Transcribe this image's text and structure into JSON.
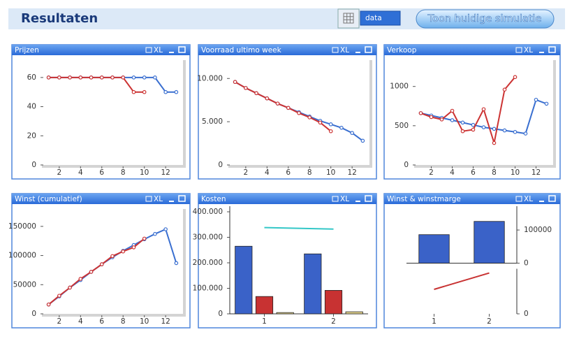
{
  "header": {
    "title": "Resultaten",
    "data_button": "data",
    "action_button": "Toon huidige simulatie"
  },
  "window_label": "XL",
  "chart_data": [
    {
      "type": "line",
      "title": "Prijzen",
      "x": [
        1,
        2,
        3,
        4,
        5,
        6,
        7,
        8,
        9,
        10,
        11,
        12,
        13
      ],
      "xlim": [
        0.5,
        13.5
      ],
      "xticks": [
        2,
        4,
        6,
        8,
        10,
        12
      ],
      "ylim": [
        0,
        70
      ],
      "yticks": [
        0,
        20,
        40,
        60
      ],
      "series": [
        {
          "color": "#3a6fd0",
          "values": [
            60,
            60,
            60,
            60,
            60,
            60,
            60,
            60,
            60,
            60,
            60,
            50,
            50
          ]
        },
        {
          "color": "#cc3333",
          "values": [
            60,
            60,
            60,
            60,
            60,
            60,
            60,
            60,
            50,
            50,
            null,
            null,
            null
          ]
        }
      ]
    },
    {
      "type": "line",
      "title": "Voorraad ultimo week",
      "x": [
        1,
        2,
        3,
        4,
        5,
        6,
        7,
        8,
        9,
        10,
        11,
        12,
        13
      ],
      "xlim": [
        0.5,
        13.5
      ],
      "xticks": [
        2,
        4,
        6,
        8,
        10,
        12
      ],
      "ylim": [
        0,
        11800
      ],
      "yticks": [
        0,
        {
          "value": 5000,
          "label": "5.000"
        },
        {
          "value": 10000,
          "label": "10.000"
        }
      ],
      "series": [
        {
          "color": "#3a6fd0",
          "values": [
            9600,
            8900,
            8300,
            7700,
            7100,
            6600,
            6100,
            5600,
            5100,
            4700,
            4300,
            3700,
            2800
          ]
        },
        {
          "color": "#cc3333",
          "values": [
            9600,
            8900,
            8300,
            7700,
            7100,
            6600,
            6000,
            5500,
            4900,
            3900,
            null,
            null,
            null
          ]
        }
      ]
    },
    {
      "type": "line",
      "title": "Verkoop",
      "x": [
        1,
        2,
        3,
        4,
        5,
        6,
        7,
        8,
        9,
        10,
        11,
        12,
        13
      ],
      "xlim": [
        0.5,
        13.5
      ],
      "xticks": [
        2,
        4,
        6,
        8,
        10,
        12
      ],
      "ylim": [
        0,
        1300
      ],
      "yticks": [
        0,
        500,
        1000
      ],
      "series": [
        {
          "color": "#3a6fd0",
          "values": [
            660,
            630,
            600,
            570,
            540,
            510,
            480,
            460,
            440,
            420,
            400,
            830,
            780
          ]
        },
        {
          "color": "#cc3333",
          "values": [
            660,
            610,
            580,
            690,
            430,
            450,
            710,
            280,
            960,
            1120,
            null,
            null,
            null
          ]
        }
      ]
    },
    {
      "type": "line",
      "title": "Winst (cumulatief)",
      "x": [
        1,
        2,
        3,
        4,
        5,
        6,
        7,
        8,
        9,
        10,
        11,
        12,
        13
      ],
      "xlim": [
        0.5,
        13.5
      ],
      "xticks": [
        2,
        4,
        6,
        8,
        10,
        12
      ],
      "ylim": [
        0,
        175000
      ],
      "yticks": [
        0,
        50000,
        100000,
        150000
      ],
      "series": [
        {
          "color": "#3a6fd0",
          "values": [
            16000,
            30000,
            45000,
            58000,
            72000,
            85000,
            97000,
            108000,
            118000,
            128000,
            137000,
            145000,
            87000
          ]
        },
        {
          "color": "#cc3333",
          "values": [
            16000,
            31000,
            45000,
            60000,
            72000,
            85000,
            99000,
            107000,
            114000,
            129000,
            null,
            null,
            null
          ]
        }
      ]
    },
    {
      "type": "bar",
      "title": "Kosten",
      "categories": [
        "1",
        "2"
      ],
      "ylim": [
        0,
        400000
      ],
      "yticks": [
        0,
        {
          "value": 100000,
          "label": "100.000"
        },
        {
          "value": 200000,
          "label": "200.000"
        },
        {
          "value": 300000,
          "label": "300.000"
        },
        {
          "value": 400000,
          "label": "400.000"
        }
      ],
      "series": [
        {
          "color": "#3a62c8",
          "values": [
            265000,
            235000
          ]
        },
        {
          "color": "#c83232",
          "values": [
            68000,
            92000
          ]
        },
        {
          "color": "#e8d890",
          "values": [
            5000,
            8000
          ]
        },
        {
          "type": "line",
          "color": "#33c7c7",
          "values": [
            338000,
            332000
          ]
        }
      ]
    },
    {
      "type": "bar",
      "title": "Winst & winstmarge",
      "categories": [
        "1",
        "2"
      ],
      "yaxis_side": "right",
      "ylim": [
        -153000,
        155000
      ],
      "yticks": [
        0,
        100000
      ],
      "y2lim": [
        0,
        0.5
      ],
      "y2ticks": [
        0
      ],
      "series": [
        {
          "color": "#3a62c8",
          "values": [
            86000,
            126000
          ]
        },
        {
          "type": "line",
          "axis": "y2",
          "color": "#c83232",
          "values": [
            0.12,
            0.2
          ]
        }
      ]
    }
  ]
}
